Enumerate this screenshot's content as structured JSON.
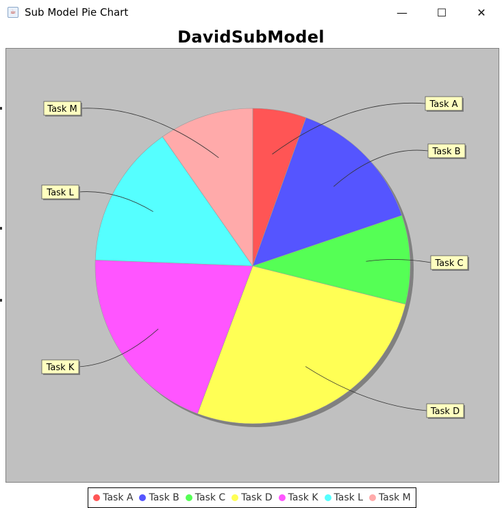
{
  "window": {
    "title": "Sub Model Pie Chart",
    "minimize_glyph": "—",
    "maximize_glyph": "☐",
    "close_glyph": "✕",
    "icon": "java-cup-icon"
  },
  "chart_data": {
    "type": "pie",
    "title": "DavidSubModel",
    "legend_position": "bottom",
    "shadow": true,
    "background": "#c0c0c0",
    "slices": [
      {
        "label": "Task A",
        "value": 5.5,
        "color": "#ff5555"
      },
      {
        "label": "Task B",
        "value": 14.3,
        "color": "#5555ff"
      },
      {
        "label": "Task C",
        "value": 9.1,
        "color": "#55ff55"
      },
      {
        "label": "Task D",
        "value": 26.8,
        "color": "#ffff55"
      },
      {
        "label": "Task K",
        "value": 19.9,
        "color": "#ff55ff"
      },
      {
        "label": "Task L",
        "value": 14.7,
        "color": "#55ffff"
      },
      {
        "label": "Task M",
        "value": 9.7,
        "color": "#ffaaaa"
      }
    ]
  }
}
